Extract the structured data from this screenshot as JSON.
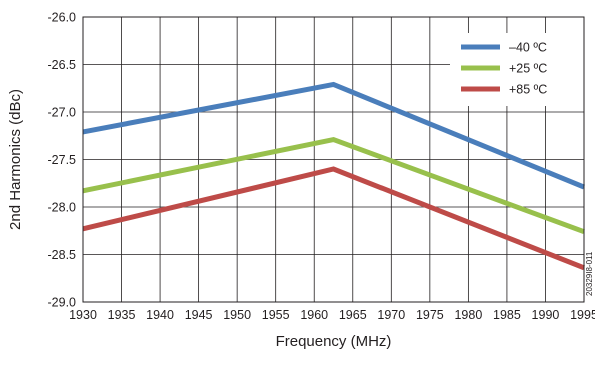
{
  "chart_data": {
    "type": "line",
    "xlabel": "Frequency (MHz)",
    "ylabel": "2nd Harmonics (dBc)",
    "x": [
      1930,
      1962.5,
      1995
    ],
    "xlim": [
      1930,
      1995
    ],
    "ylim": [
      -29.0,
      -26.0
    ],
    "xticks": [
      "1930",
      "1935",
      "1940",
      "1945",
      "1950",
      "1955",
      "1960",
      "1965",
      "1970",
      "1975",
      "1980",
      "1985",
      "1990",
      "1995"
    ],
    "yticks": [
      "-26.0",
      "-26.5",
      "-27.0",
      "-27.5",
      "-28.0",
      "-28.5",
      "-29.0"
    ],
    "grid": true,
    "legend_position": "top-right",
    "series": [
      {
        "name": "–40 ºC",
        "color": "#4a7ebb",
        "values": [
          -27.21,
          -26.71,
          -27.79
        ]
      },
      {
        "name": "+25 ºC",
        "color": "#98c04c",
        "values": [
          -27.83,
          -27.29,
          -28.26
        ]
      },
      {
        "name": "+85 ºC",
        "color": "#be4b48",
        "values": [
          -28.23,
          -27.6,
          -28.64
        ]
      }
    ],
    "figure_id": "20329I8-011"
  }
}
